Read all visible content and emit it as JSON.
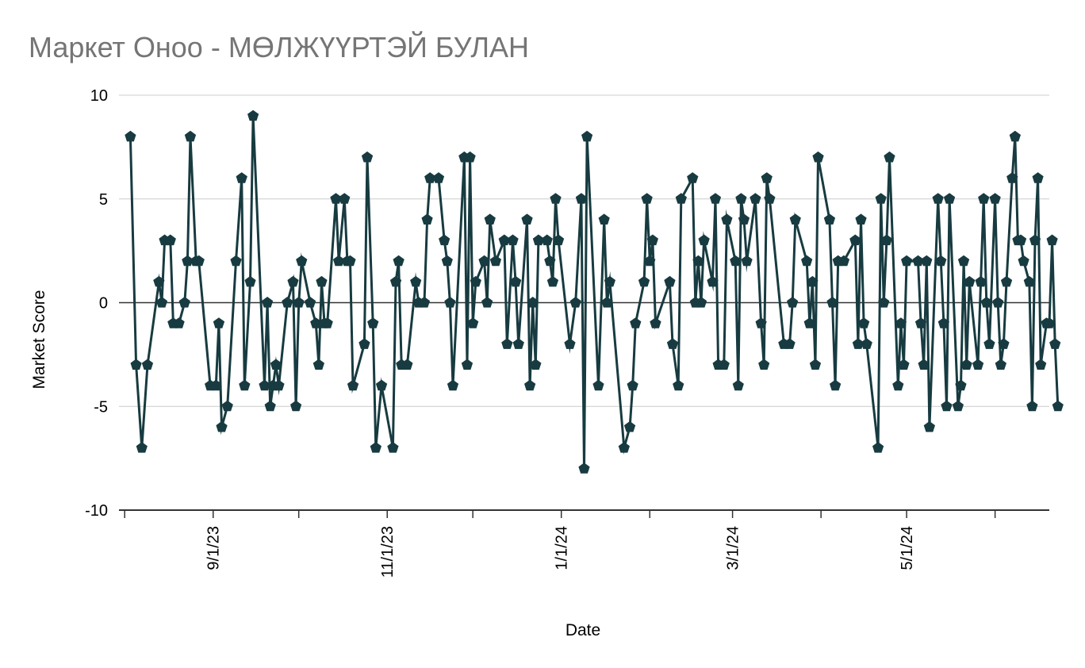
{
  "chart_data": {
    "type": "line",
    "title": "Маркет Оноо - МӨЛЖҮҮРТЭЙ БУЛАН",
    "xlabel": "Date",
    "ylabel": "Market Score",
    "ylim": [
      -10,
      10
    ],
    "y_ticks": [
      -10,
      -5,
      0,
      5,
      10
    ],
    "y_tick_labels": [
      "-10",
      "-5",
      "0",
      "5",
      "10"
    ],
    "xlim": [
      "2023-07-30",
      "2024-06-20"
    ],
    "x_ticks": [
      "2023-09-01",
      "2023-11-01",
      "2024-01-01",
      "2024-03-01",
      "2024-05-01"
    ],
    "x_tick_labels": [
      "9/1/23",
      "11/1/23",
      "1/1/24",
      "3/1/24",
      "5/1/24"
    ],
    "grid": true,
    "marker": "pentagon",
    "series": [
      {
        "color": "#173b40",
        "points": [
          [
            "2023-08-03",
            8
          ],
          [
            "2023-08-05",
            -3
          ],
          [
            "2023-08-07",
            -7
          ],
          [
            "2023-08-09",
            -3
          ],
          [
            "2023-08-13",
            1
          ],
          [
            "2023-08-14",
            0
          ],
          [
            "2023-08-15",
            3
          ],
          [
            "2023-08-17",
            3
          ],
          [
            "2023-08-18",
            -1
          ],
          [
            "2023-08-20",
            -1
          ],
          [
            "2023-08-22",
            0
          ],
          [
            "2023-08-23",
            2
          ],
          [
            "2023-08-24",
            8
          ],
          [
            "2023-08-26",
            2
          ],
          [
            "2023-08-27",
            2
          ],
          [
            "2023-08-31",
            -4
          ],
          [
            "2023-09-02",
            -4
          ],
          [
            "2023-09-03",
            -1
          ],
          [
            "2023-09-04",
            -6
          ],
          [
            "2023-09-06",
            -5
          ],
          [
            "2023-09-09",
            2
          ],
          [
            "2023-09-11",
            6
          ],
          [
            "2023-09-12",
            -4
          ],
          [
            "2023-09-14",
            1
          ],
          [
            "2023-09-15",
            9
          ],
          [
            "2023-09-19",
            -4
          ],
          [
            "2023-09-20",
            0
          ],
          [
            "2023-09-21",
            -5
          ],
          [
            "2023-09-22",
            -4
          ],
          [
            "2023-09-23",
            -3
          ],
          [
            "2023-09-24",
            -4
          ],
          [
            "2023-09-27",
            0
          ],
          [
            "2023-09-29",
            1
          ],
          [
            "2023-09-30",
            -5
          ],
          [
            "2023-10-01",
            0
          ],
          [
            "2023-10-02",
            2
          ],
          [
            "2023-10-05",
            0
          ],
          [
            "2023-10-07",
            -1
          ],
          [
            "2023-10-08",
            -3
          ],
          [
            "2023-10-09",
            1
          ],
          [
            "2023-10-10",
            -1
          ],
          [
            "2023-10-11",
            -1
          ],
          [
            "2023-10-14",
            5
          ],
          [
            "2023-10-15",
            2
          ],
          [
            "2023-10-17",
            5
          ],
          [
            "2023-10-18",
            2
          ],
          [
            "2023-10-19",
            2
          ],
          [
            "2023-10-20",
            -4
          ],
          [
            "2023-10-24",
            -2
          ],
          [
            "2023-10-25",
            7
          ],
          [
            "2023-10-27",
            -1
          ],
          [
            "2023-10-28",
            -7
          ],
          [
            "2023-10-30",
            -4
          ],
          [
            "2023-11-03",
            -7
          ],
          [
            "2023-11-04",
            1
          ],
          [
            "2023-11-05",
            2
          ],
          [
            "2023-11-06",
            -3
          ],
          [
            "2023-11-08",
            -3
          ],
          [
            "2023-11-11",
            1
          ],
          [
            "2023-11-12",
            0
          ],
          [
            "2023-11-14",
            0
          ],
          [
            "2023-11-15",
            4
          ],
          [
            "2023-11-16",
            6
          ],
          [
            "2023-11-19",
            6
          ],
          [
            "2023-11-21",
            3
          ],
          [
            "2023-11-22",
            2
          ],
          [
            "2023-11-23",
            0
          ],
          [
            "2023-11-24",
            -4
          ],
          [
            "2023-11-28",
            7
          ],
          [
            "2023-11-29",
            -3
          ],
          [
            "2023-11-30",
            7
          ],
          [
            "2023-12-01",
            -1
          ],
          [
            "2023-12-02",
            1
          ],
          [
            "2023-12-05",
            2
          ],
          [
            "2023-12-06",
            0
          ],
          [
            "2023-12-07",
            4
          ],
          [
            "2023-12-09",
            2
          ],
          [
            "2023-12-12",
            3
          ],
          [
            "2023-12-13",
            -2
          ],
          [
            "2023-12-15",
            3
          ],
          [
            "2023-12-16",
            1
          ],
          [
            "2023-12-17",
            -2
          ],
          [
            "2023-12-20",
            4
          ],
          [
            "2023-12-21",
            -4
          ],
          [
            "2023-12-22",
            0
          ],
          [
            "2023-12-23",
            -3
          ],
          [
            "2023-12-24",
            3
          ],
          [
            "2023-12-27",
            3
          ],
          [
            "2023-12-28",
            2
          ],
          [
            "2023-12-29",
            1
          ],
          [
            "2023-12-30",
            5
          ],
          [
            "2023-12-31",
            3
          ],
          [
            "2024-01-04",
            -2
          ],
          [
            "2024-01-06",
            0
          ],
          [
            "2024-01-08",
            5
          ],
          [
            "2024-01-09",
            -8
          ],
          [
            "2024-01-10",
            8
          ],
          [
            "2024-01-14",
            -4
          ],
          [
            "2024-01-16",
            4
          ],
          [
            "2024-01-17",
            0
          ],
          [
            "2024-01-18",
            1
          ],
          [
            "2024-01-23",
            -7
          ],
          [
            "2024-01-25",
            -6
          ],
          [
            "2024-01-26",
            -4
          ],
          [
            "2024-01-27",
            -1
          ],
          [
            "2024-01-30",
            1
          ],
          [
            "2024-01-31",
            5
          ],
          [
            "2024-02-01",
            2
          ],
          [
            "2024-02-02",
            3
          ],
          [
            "2024-02-03",
            -1
          ],
          [
            "2024-02-08",
            1
          ],
          [
            "2024-02-09",
            -2
          ],
          [
            "2024-02-11",
            -4
          ],
          [
            "2024-02-12",
            5
          ],
          [
            "2024-02-16",
            6
          ],
          [
            "2024-02-17",
            0
          ],
          [
            "2024-02-18",
            2
          ],
          [
            "2024-02-19",
            0
          ],
          [
            "2024-02-20",
            3
          ],
          [
            "2024-02-23",
            1
          ],
          [
            "2024-02-24",
            5
          ],
          [
            "2024-02-25",
            -3
          ],
          [
            "2024-02-27",
            -3
          ],
          [
            "2024-02-28",
            4
          ],
          [
            "2024-03-02",
            2
          ],
          [
            "2024-03-03",
            -4
          ],
          [
            "2024-03-04",
            5
          ],
          [
            "2024-03-05",
            4
          ],
          [
            "2024-03-06",
            2
          ],
          [
            "2024-03-09",
            5
          ],
          [
            "2024-03-11",
            -1
          ],
          [
            "2024-03-12",
            -3
          ],
          [
            "2024-03-13",
            6
          ],
          [
            "2024-03-14",
            5
          ],
          [
            "2024-03-19",
            -2
          ],
          [
            "2024-03-21",
            -2
          ],
          [
            "2024-03-22",
            0
          ],
          [
            "2024-03-23",
            4
          ],
          [
            "2024-03-27",
            2
          ],
          [
            "2024-03-28",
            -1
          ],
          [
            "2024-03-29",
            1
          ],
          [
            "2024-03-30",
            -3
          ],
          [
            "2024-03-31",
            7
          ],
          [
            "2024-04-04",
            4
          ],
          [
            "2024-04-05",
            0
          ],
          [
            "2024-04-06",
            -4
          ],
          [
            "2024-04-07",
            2
          ],
          [
            "2024-04-09",
            2
          ],
          [
            "2024-04-13",
            3
          ],
          [
            "2024-04-14",
            -2
          ],
          [
            "2024-04-15",
            4
          ],
          [
            "2024-04-16",
            -1
          ],
          [
            "2024-04-17",
            -2
          ],
          [
            "2024-04-21",
            -7
          ],
          [
            "2024-04-22",
            5
          ],
          [
            "2024-04-23",
            0
          ],
          [
            "2024-04-24",
            3
          ],
          [
            "2024-04-25",
            7
          ],
          [
            "2024-04-28",
            -4
          ],
          [
            "2024-04-29",
            -1
          ],
          [
            "2024-04-30",
            -3
          ],
          [
            "2024-05-01",
            2
          ],
          [
            "2024-05-05",
            2
          ],
          [
            "2024-05-06",
            -1
          ],
          [
            "2024-05-07",
            -3
          ],
          [
            "2024-05-08",
            2
          ],
          [
            "2024-05-09",
            -6
          ],
          [
            "2024-05-12",
            5
          ],
          [
            "2024-05-13",
            2
          ],
          [
            "2024-05-14",
            -1
          ],
          [
            "2024-05-15",
            -5
          ],
          [
            "2024-05-16",
            5
          ],
          [
            "2024-05-19",
            -5
          ],
          [
            "2024-05-20",
            -4
          ],
          [
            "2024-05-21",
            2
          ],
          [
            "2024-05-22",
            -3
          ],
          [
            "2024-05-23",
            1
          ],
          [
            "2024-05-26",
            -3
          ],
          [
            "2024-05-27",
            1
          ],
          [
            "2024-05-28",
            5
          ],
          [
            "2024-05-29",
            0
          ],
          [
            "2024-05-30",
            -2
          ],
          [
            "2024-06-01",
            5
          ],
          [
            "2024-06-02",
            0
          ],
          [
            "2024-06-03",
            -3
          ],
          [
            "2024-06-04",
            -2
          ],
          [
            "2024-06-05",
            1
          ],
          [
            "2024-06-07",
            6
          ],
          [
            "2024-06-08",
            8
          ],
          [
            "2024-06-09",
            3
          ],
          [
            "2024-06-10",
            3
          ],
          [
            "2024-06-11",
            2
          ],
          [
            "2024-06-13",
            1
          ],
          [
            "2024-06-14",
            -5
          ],
          [
            "2024-06-15",
            3
          ],
          [
            "2024-06-16",
            6
          ],
          [
            "2024-06-17",
            -3
          ],
          [
            "2024-06-19",
            -1
          ],
          [
            "2024-06-20",
            -1
          ],
          [
            "2024-06-21",
            3
          ],
          [
            "2024-06-22",
            -2
          ],
          [
            "2024-06-23",
            -5
          ]
        ]
      }
    ]
  }
}
